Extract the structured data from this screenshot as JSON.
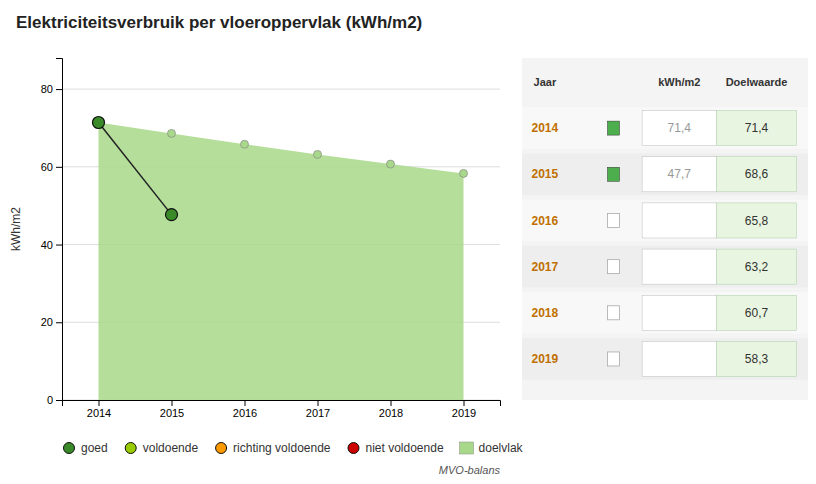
{
  "chart_data": [
    {
      "type": "line",
      "title": "Elektriciteitsverbruik per vloeroppervlak (kWh/m2)",
      "ylabel": "kWh/m2",
      "x": [
        2014,
        2015,
        2016,
        2017,
        2018,
        2019
      ],
      "xlim": [
        2013.5,
        2019.5
      ],
      "xticks": [
        2014,
        2015,
        2016,
        2017,
        2018,
        2019
      ],
      "ylim": [
        0,
        88
      ],
      "yticks": [
        0,
        20,
        40,
        60,
        80
      ],
      "grid": true,
      "legend": "bottom",
      "series": [
        {
          "name": "goed",
          "type": "line",
          "marker": "circle",
          "color": "#3a8a2a",
          "values": [
            71.4,
            47.7,
            null,
            null,
            null,
            null
          ]
        },
        {
          "name": "voldoende",
          "type": "line",
          "marker": "circle",
          "color": "#99cc00",
          "values": [
            null,
            null,
            null,
            null,
            null,
            null
          ]
        },
        {
          "name": "richting voldoende",
          "type": "line",
          "marker": "circle",
          "color": "#ff9900",
          "values": [
            null,
            null,
            null,
            null,
            null,
            null
          ]
        },
        {
          "name": "niet voldoende",
          "type": "line",
          "marker": "circle",
          "color": "#cc0000",
          "values": [
            null,
            null,
            null,
            null,
            null,
            null
          ]
        },
        {
          "name": "doelvlak",
          "type": "area",
          "marker": "circle",
          "color": "#a8d88a",
          "values": [
            71.4,
            68.6,
            65.8,
            63.2,
            60.7,
            58.3
          ]
        }
      ],
      "annotations": [
        "MVO-balans"
      ]
    },
    {
      "type": "table",
      "columns": [
        "Jaar",
        "kWh/m2",
        "Doelwaarde"
      ],
      "rows": [
        [
          "2014",
          "71,4",
          "71,4"
        ],
        [
          "2015",
          "47,7",
          "68,6"
        ],
        [
          "2016",
          null,
          "65,8"
        ],
        [
          "2017",
          null,
          "63,2"
        ],
        [
          "2018",
          null,
          "60,7"
        ],
        [
          "2019",
          null,
          "58,3"
        ]
      ],
      "colors": [
        "#4cae4c",
        "#4cae4c",
        null,
        null,
        null,
        null
      ]
    }
  ]
}
